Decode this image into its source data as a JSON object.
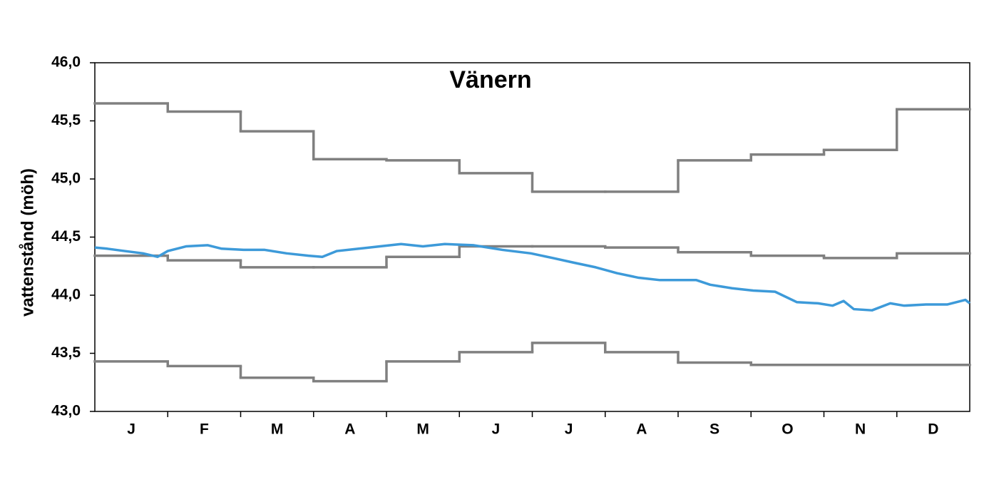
{
  "chart_data": {
    "type": "line",
    "title": "Vänern",
    "y_label": "vattenstånd (möh)",
    "xlim": [
      0,
      12
    ],
    "xticks": [
      {
        "value": 0.5,
        "label": "J"
      },
      {
        "value": 1.5,
        "label": "F"
      },
      {
        "value": 2.5,
        "label": "M"
      },
      {
        "value": 3.5,
        "label": "A"
      },
      {
        "value": 4.5,
        "label": "M"
      },
      {
        "value": 5.5,
        "label": "J"
      },
      {
        "value": 6.5,
        "label": "J"
      },
      {
        "value": 7.5,
        "label": "A"
      },
      {
        "value": 8.5,
        "label": "S"
      },
      {
        "value": 9.5,
        "label": "O"
      },
      {
        "value": 10.5,
        "label": "N"
      },
      {
        "value": 11.5,
        "label": "D"
      }
    ],
    "ylim": [
      43,
      46
    ],
    "yticks": [
      {
        "value": 43,
        "label": "43,0"
      },
      {
        "value": 43.5,
        "label": "43,5"
      },
      {
        "value": 44,
        "label": "44,0"
      },
      {
        "value": 44.5,
        "label": "44,5"
      },
      {
        "value": 45,
        "label": "45,0"
      },
      {
        "value": 45.5,
        "label": "45,5"
      },
      {
        "value": 46,
        "label": "46,0"
      }
    ],
    "series": [
      {
        "color": "#808080",
        "step": true,
        "values": [
          45.65,
          45.58,
          45.41,
          45.17,
          45.16,
          45.05,
          44.89,
          44.89,
          45.16,
          45.21,
          45.25,
          45.6
        ]
      },
      {
        "color": "#808080",
        "step": true,
        "values": [
          44.34,
          44.3,
          44.24,
          44.24,
          44.33,
          44.42,
          44.42,
          44.41,
          44.37,
          44.34,
          44.32,
          44.36
        ]
      },
      {
        "color": "#808080",
        "step": true,
        "values": [
          43.43,
          43.39,
          43.29,
          43.26,
          43.43,
          43.51,
          43.59,
          43.51,
          43.42,
          43.4,
          43.4,
          43.4
        ]
      },
      {
        "color": "#3d9ad9",
        "x": [
          0,
          0.17,
          0.41,
          0.66,
          0.86,
          1.0,
          1.25,
          1.55,
          1.74,
          2.04,
          2.33,
          2.63,
          2.93,
          3.12,
          3.32,
          3.62,
          3.91,
          4.2,
          4.5,
          4.8,
          5.19,
          5.59,
          5.98,
          6.28,
          6.57,
          6.87,
          7.16,
          7.46,
          7.75,
          8.05,
          8.25,
          8.44,
          8.74,
          9.03,
          9.33,
          9.63,
          9.92,
          10.12,
          10.27,
          10.41,
          10.66,
          10.91,
          11.1,
          11.4,
          11.69,
          11.94,
          12
        ],
        "values": [
          44.41,
          44.4,
          44.38,
          44.36,
          44.33,
          44.38,
          44.42,
          44.43,
          44.4,
          44.39,
          44.39,
          44.36,
          44.34,
          44.33,
          44.38,
          44.4,
          44.42,
          44.44,
          44.42,
          44.44,
          44.43,
          44.39,
          44.36,
          44.32,
          44.28,
          44.24,
          44.19,
          44.15,
          44.13,
          44.13,
          44.13,
          44.09,
          44.06,
          44.04,
          44.03,
          43.94,
          43.93,
          43.91,
          43.95,
          43.88,
          43.87,
          43.93,
          43.91,
          43.92,
          43.92,
          43.96,
          43.93
        ]
      }
    ]
  }
}
